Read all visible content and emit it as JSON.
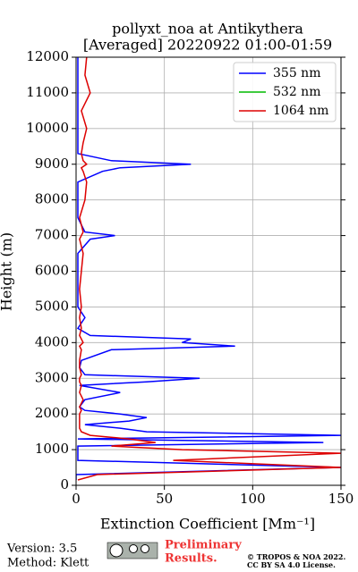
{
  "chart_data": {
    "type": "line",
    "title": "pollyxt_noa at Antikythera",
    "subtitle": "[Averaged] 20220922 01:00-01:59",
    "x_label": "Extinction Coefficient [Mm⁻¹]",
    "y_label": "Height (m)",
    "y": [
      150,
      300,
      500,
      700,
      900,
      1000,
      1100,
      1200,
      1300,
      1400,
      1500,
      1600,
      1700,
      1800,
      1900,
      2000,
      2100,
      2200,
      2400,
      2600,
      2800,
      2900,
      3000,
      3100,
      3300,
      3500,
      3800,
      3900,
      4000,
      4100,
      4200,
      4400,
      4700,
      5000,
      5500,
      6000,
      6500,
      6900,
      7000,
      7100,
      7500,
      8000,
      8500,
      8800,
      8900,
      9000,
      9100,
      9300,
      9600,
      10000,
      10500,
      11000,
      11500,
      12000
    ],
    "series": [
      {
        "name": "355 nm",
        "color": "#0000ff",
        "values": [
          0,
          0,
          150,
          1,
          1,
          1,
          1,
          140,
          1,
          150,
          40,
          25,
          5,
          30,
          40,
          25,
          5,
          2,
          5,
          25,
          2,
          40,
          70,
          5,
          2,
          3,
          20,
          90,
          60,
          65,
          8,
          1,
          5,
          1,
          1,
          1,
          1,
          8,
          22,
          5,
          1,
          1,
          1,
          15,
          25,
          65,
          20,
          1,
          1,
          1,
          1,
          1,
          1,
          1
        ]
      },
      {
        "name": "532 nm",
        "color": "#00bb00",
        "values": [
          null,
          null,
          null,
          null,
          null,
          null,
          null,
          null,
          null,
          null,
          null,
          null,
          null,
          null,
          null,
          null,
          null,
          null,
          null,
          null,
          null,
          null,
          null,
          null,
          null,
          null,
          null,
          null,
          null,
          null,
          null,
          null,
          null,
          null,
          null,
          null,
          null,
          null,
          null,
          null,
          null,
          null,
          null,
          null,
          null,
          null,
          null,
          null,
          null,
          null,
          null,
          null,
          null,
          null
        ]
      },
      {
        "name": "1064 nm",
        "color": "#dd0000",
        "values": [
          1,
          12,
          150,
          55,
          150,
          60,
          20,
          45,
          30,
          8,
          3,
          2,
          2,
          2,
          2,
          2,
          3,
          2,
          4,
          2,
          3,
          2,
          2,
          3,
          2,
          2,
          3,
          2,
          4,
          3,
          2,
          3,
          2,
          3,
          2,
          3,
          4,
          2,
          3,
          4,
          2,
          5,
          6,
          4,
          3,
          6,
          4,
          3,
          4,
          6,
          3,
          8,
          5,
          6
        ]
      }
    ],
    "xlim": [
      0,
      150
    ],
    "xticks": [
      0,
      50,
      100,
      150
    ],
    "ylim": [
      0,
      12000
    ],
    "yticks": [
      0,
      1000,
      2000,
      3000,
      4000,
      5000,
      6000,
      7000,
      8000,
      9000,
      10000,
      11000,
      12000
    ],
    "grid": true,
    "legend": "upper right"
  },
  "footer": {
    "version": "Version: 3.5",
    "method": "Method: Klett",
    "preliminary": "Preliminary",
    "results": "Results.",
    "copyright": "© TROPOS & NOA 2022.",
    "license": "CC BY SA 4.0 License."
  }
}
